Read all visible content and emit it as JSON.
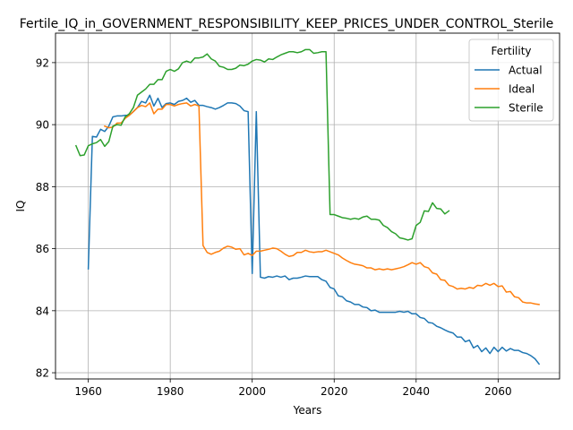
{
  "chart_data": {
    "type": "line",
    "title": "Fertile_IQ_in_GOVERNMENT_RESPONSIBILITY_KEEP_PRICES_UNDER_CONTROL_Sterile",
    "xlabel": "Years",
    "ylabel": "IQ",
    "xlim": [
      1952,
      2075
    ],
    "ylim": [
      81.8,
      92.95
    ],
    "xticks": [
      1960,
      1980,
      2000,
      2020,
      2040,
      2060
    ],
    "yticks": [
      82,
      84,
      86,
      88,
      90,
      92
    ],
    "grid": true,
    "legend": {
      "title": "Fertility",
      "placement": "top-right"
    },
    "series": [
      {
        "name": "Actual",
        "color": "#1f77b4",
        "points": [
          [
            1960,
            85.35
          ],
          [
            1961,
            89.62
          ],
          [
            1962,
            89.6
          ],
          [
            1963,
            89.85
          ],
          [
            1964,
            89.78
          ],
          [
            1965,
            89.95
          ],
          [
            1966,
            90.25
          ],
          [
            1967,
            90.28
          ],
          [
            1968,
            90.28
          ],
          [
            1969,
            90.3
          ],
          [
            1970,
            90.3
          ],
          [
            1971,
            90.42
          ],
          [
            1972,
            90.55
          ],
          [
            1973,
            90.75
          ],
          [
            1974,
            90.7
          ],
          [
            1975,
            90.95
          ],
          [
            1976,
            90.6
          ],
          [
            1977,
            90.85
          ],
          [
            1978,
            90.55
          ],
          [
            1979,
            90.68
          ],
          [
            1980,
            90.7
          ],
          [
            1981,
            90.65
          ],
          [
            1982,
            90.75
          ],
          [
            1983,
            90.78
          ],
          [
            1984,
            90.85
          ],
          [
            1985,
            90.72
          ],
          [
            1986,
            90.78
          ],
          [
            1987,
            90.62
          ],
          [
            1988,
            90.62
          ],
          [
            1989,
            90.58
          ],
          [
            1990,
            90.55
          ],
          [
            1991,
            90.5
          ],
          [
            1992,
            90.55
          ],
          [
            1993,
            90.62
          ],
          [
            1994,
            90.7
          ],
          [
            1995,
            90.7
          ],
          [
            1996,
            90.68
          ],
          [
            1997,
            90.6
          ],
          [
            1998,
            90.45
          ],
          [
            1999,
            90.42
          ],
          [
            2000,
            85.2
          ],
          [
            2001,
            90.42
          ],
          [
            2002,
            85.08
          ],
          [
            2003,
            85.05
          ],
          [
            2004,
            85.1
          ],
          [
            2005,
            85.08
          ],
          [
            2006,
            85.12
          ],
          [
            2007,
            85.08
          ],
          [
            2008,
            85.12
          ],
          [
            2009,
            85.0
          ],
          [
            2010,
            85.05
          ],
          [
            2011,
            85.05
          ],
          [
            2012,
            85.08
          ],
          [
            2013,
            85.12
          ],
          [
            2014,
            85.1
          ],
          [
            2015,
            85.1
          ],
          [
            2016,
            85.1
          ],
          [
            2017,
            85.0
          ],
          [
            2018,
            84.95
          ],
          [
            2019,
            84.75
          ],
          [
            2020,
            84.7
          ],
          [
            2021,
            84.48
          ],
          [
            2022,
            84.45
          ],
          [
            2023,
            84.32
          ],
          [
            2024,
            84.28
          ],
          [
            2025,
            84.2
          ],
          [
            2026,
            84.2
          ],
          [
            2027,
            84.12
          ],
          [
            2028,
            84.1
          ],
          [
            2029,
            84.0
          ],
          [
            2030,
            84.02
          ],
          [
            2031,
            83.95
          ],
          [
            2032,
            83.95
          ],
          [
            2033,
            83.95
          ],
          [
            2034,
            83.95
          ],
          [
            2035,
            83.95
          ],
          [
            2036,
            83.98
          ],
          [
            2037,
            83.95
          ],
          [
            2038,
            83.98
          ],
          [
            2039,
            83.9
          ],
          [
            2040,
            83.9
          ],
          [
            2041,
            83.78
          ],
          [
            2042,
            83.75
          ],
          [
            2043,
            83.62
          ],
          [
            2044,
            83.6
          ],
          [
            2045,
            83.5
          ],
          [
            2046,
            83.45
          ],
          [
            2047,
            83.38
          ],
          [
            2048,
            83.32
          ],
          [
            2049,
            83.28
          ],
          [
            2050,
            83.15
          ],
          [
            2051,
            83.15
          ],
          [
            2052,
            83.0
          ],
          [
            2053,
            83.05
          ],
          [
            2054,
            82.8
          ],
          [
            2055,
            82.88
          ],
          [
            2056,
            82.68
          ],
          [
            2057,
            82.8
          ],
          [
            2058,
            82.62
          ],
          [
            2059,
            82.82
          ],
          [
            2060,
            82.68
          ],
          [
            2061,
            82.82
          ],
          [
            2062,
            82.7
          ],
          [
            2063,
            82.78
          ],
          [
            2064,
            82.72
          ],
          [
            2065,
            82.72
          ],
          [
            2066,
            82.65
          ],
          [
            2067,
            82.62
          ],
          [
            2068,
            82.55
          ],
          [
            2069,
            82.45
          ],
          [
            2070,
            82.28
          ]
        ]
      },
      {
        "name": "Ideal",
        "color": "#ff7f0e",
        "points": [
          [
            1964,
            89.95
          ],
          [
            1965,
            89.9
          ],
          [
            1966,
            89.92
          ],
          [
            1967,
            90.05
          ],
          [
            1968,
            90.05
          ],
          [
            1969,
            90.2
          ],
          [
            1970,
            90.3
          ],
          [
            1971,
            90.42
          ],
          [
            1972,
            90.55
          ],
          [
            1973,
            90.62
          ],
          [
            1974,
            90.58
          ],
          [
            1975,
            90.7
          ],
          [
            1976,
            90.35
          ],
          [
            1977,
            90.5
          ],
          [
            1978,
            90.5
          ],
          [
            1979,
            90.65
          ],
          [
            1980,
            90.65
          ],
          [
            1981,
            90.6
          ],
          [
            1982,
            90.65
          ],
          [
            1983,
            90.68
          ],
          [
            1984,
            90.7
          ],
          [
            1985,
            90.6
          ],
          [
            1986,
            90.65
          ],
          [
            1987,
            90.6
          ],
          [
            1988,
            86.1
          ],
          [
            1989,
            85.88
          ],
          [
            1990,
            85.82
          ],
          [
            1991,
            85.88
          ],
          [
            1992,
            85.92
          ],
          [
            1993,
            86.02
          ],
          [
            1994,
            86.08
          ],
          [
            1995,
            86.05
          ],
          [
            1996,
            85.98
          ],
          [
            1997,
            86.0
          ],
          [
            1998,
            85.8
          ],
          [
            1999,
            85.85
          ],
          [
            2000,
            85.78
          ],
          [
            2001,
            85.92
          ],
          [
            2002,
            85.92
          ],
          [
            2003,
            85.95
          ],
          [
            2004,
            85.98
          ],
          [
            2005,
            86.02
          ],
          [
            2006,
            86.0
          ],
          [
            2007,
            85.92
          ],
          [
            2008,
            85.82
          ],
          [
            2009,
            85.75
          ],
          [
            2010,
            85.78
          ],
          [
            2011,
            85.88
          ],
          [
            2012,
            85.88
          ],
          [
            2013,
            85.95
          ],
          [
            2014,
            85.9
          ],
          [
            2015,
            85.88
          ],
          [
            2016,
            85.9
          ],
          [
            2017,
            85.9
          ],
          [
            2018,
            85.95
          ],
          [
            2019,
            85.9
          ],
          [
            2020,
            85.85
          ],
          [
            2021,
            85.8
          ],
          [
            2022,
            85.7
          ],
          [
            2023,
            85.62
          ],
          [
            2024,
            85.55
          ],
          [
            2025,
            85.5
          ],
          [
            2026,
            85.48
          ],
          [
            2027,
            85.45
          ],
          [
            2028,
            85.38
          ],
          [
            2029,
            85.38
          ],
          [
            2030,
            85.32
          ],
          [
            2031,
            85.35
          ],
          [
            2032,
            85.32
          ],
          [
            2033,
            85.35
          ],
          [
            2034,
            85.32
          ],
          [
            2035,
            85.35
          ],
          [
            2036,
            85.38
          ],
          [
            2037,
            85.42
          ],
          [
            2038,
            85.48
          ],
          [
            2039,
            85.55
          ],
          [
            2040,
            85.5
          ],
          [
            2041,
            85.55
          ],
          [
            2042,
            85.42
          ],
          [
            2043,
            85.38
          ],
          [
            2044,
            85.22
          ],
          [
            2045,
            85.18
          ],
          [
            2046,
            85.0
          ],
          [
            2047,
            84.98
          ],
          [
            2048,
            84.82
          ],
          [
            2049,
            84.78
          ],
          [
            2050,
            84.7
          ],
          [
            2051,
            84.72
          ],
          [
            2052,
            84.7
          ],
          [
            2053,
            84.75
          ],
          [
            2054,
            84.72
          ],
          [
            2055,
            84.82
          ],
          [
            2056,
            84.8
          ],
          [
            2057,
            84.88
          ],
          [
            2058,
            84.82
          ],
          [
            2059,
            84.88
          ],
          [
            2060,
            84.78
          ],
          [
            2061,
            84.8
          ],
          [
            2062,
            84.6
          ],
          [
            2063,
            84.62
          ],
          [
            2064,
            84.45
          ],
          [
            2065,
            84.42
          ],
          [
            2066,
            84.28
          ],
          [
            2067,
            84.25
          ],
          [
            2068,
            84.25
          ],
          [
            2069,
            84.22
          ],
          [
            2070,
            84.2
          ]
        ]
      },
      {
        "name": "Sterile",
        "color": "#2ca02c",
        "points": [
          [
            1957,
            89.32
          ],
          [
            1958,
            89.0
          ],
          [
            1959,
            89.02
          ],
          [
            1960,
            89.32
          ],
          [
            1961,
            89.38
          ],
          [
            1962,
            89.42
          ],
          [
            1963,
            89.52
          ],
          [
            1964,
            89.3
          ],
          [
            1965,
            89.45
          ],
          [
            1966,
            89.95
          ],
          [
            1967,
            90.0
          ],
          [
            1968,
            89.98
          ],
          [
            1969,
            90.25
          ],
          [
            1970,
            90.35
          ],
          [
            1971,
            90.55
          ],
          [
            1972,
            90.95
          ],
          [
            1973,
            91.05
          ],
          [
            1974,
            91.15
          ],
          [
            1975,
            91.3
          ],
          [
            1976,
            91.3
          ],
          [
            1977,
            91.45
          ],
          [
            1978,
            91.45
          ],
          [
            1979,
            91.72
          ],
          [
            1980,
            91.78
          ],
          [
            1981,
            91.72
          ],
          [
            1982,
            91.8
          ],
          [
            1983,
            92.0
          ],
          [
            1984,
            92.05
          ],
          [
            1985,
            92.0
          ],
          [
            1986,
            92.15
          ],
          [
            1987,
            92.15
          ],
          [
            1988,
            92.18
          ],
          [
            1989,
            92.28
          ],
          [
            1990,
            92.12
          ],
          [
            1991,
            92.05
          ],
          [
            1992,
            91.88
          ],
          [
            1993,
            91.85
          ],
          [
            1994,
            91.78
          ],
          [
            1995,
            91.78
          ],
          [
            1996,
            91.82
          ],
          [
            1997,
            91.92
          ],
          [
            1998,
            91.9
          ],
          [
            1999,
            91.95
          ],
          [
            2000,
            92.05
          ],
          [
            2001,
            92.1
          ],
          [
            2002,
            92.08
          ],
          [
            2003,
            92.02
          ],
          [
            2004,
            92.12
          ],
          [
            2005,
            92.1
          ],
          [
            2006,
            92.18
          ],
          [
            2007,
            92.25
          ],
          [
            2008,
            92.3
          ],
          [
            2009,
            92.35
          ],
          [
            2010,
            92.35
          ],
          [
            2011,
            92.32
          ],
          [
            2012,
            92.35
          ],
          [
            2013,
            92.42
          ],
          [
            2014,
            92.42
          ],
          [
            2015,
            92.3
          ],
          [
            2016,
            92.32
          ],
          [
            2017,
            92.35
          ],
          [
            2018,
            92.35
          ],
          [
            2019,
            87.1
          ],
          [
            2020,
            87.1
          ],
          [
            2021,
            87.05
          ],
          [
            2022,
            87.0
          ],
          [
            2023,
            86.98
          ],
          [
            2024,
            86.95
          ],
          [
            2025,
            86.98
          ],
          [
            2026,
            86.95
          ],
          [
            2027,
            87.02
          ],
          [
            2028,
            87.05
          ],
          [
            2029,
            86.95
          ],
          [
            2030,
            86.95
          ],
          [
            2031,
            86.92
          ],
          [
            2032,
            86.75
          ],
          [
            2033,
            86.68
          ],
          [
            2034,
            86.55
          ],
          [
            2035,
            86.48
          ],
          [
            2036,
            86.35
          ],
          [
            2037,
            86.32
          ],
          [
            2038,
            86.28
          ],
          [
            2039,
            86.32
          ],
          [
            2040,
            86.75
          ],
          [
            2041,
            86.85
          ],
          [
            2042,
            87.22
          ],
          [
            2043,
            87.2
          ],
          [
            2044,
            87.48
          ],
          [
            2045,
            87.3
          ],
          [
            2046,
            87.28
          ],
          [
            2047,
            87.12
          ],
          [
            2048,
            87.22
          ]
        ]
      }
    ]
  }
}
